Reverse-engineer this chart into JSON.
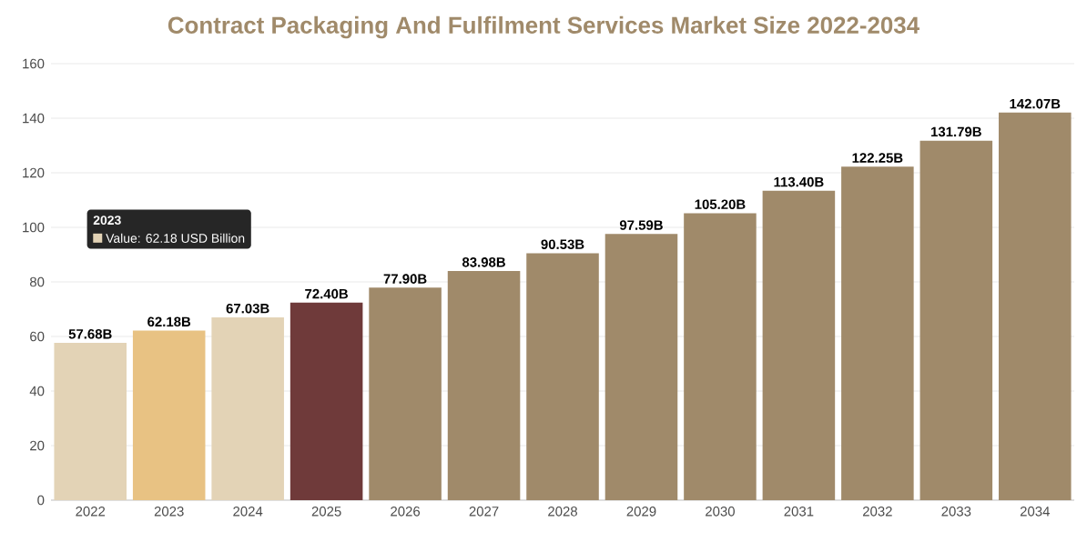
{
  "chart_data": {
    "type": "bar",
    "title": "Contract Packaging And Fulfilment Services Market Size 2022-2034",
    "categories": [
      "2022",
      "2023",
      "2024",
      "2025",
      "2026",
      "2027",
      "2028",
      "2029",
      "2030",
      "2031",
      "2032",
      "2033",
      "2034"
    ],
    "values": [
      57.68,
      62.18,
      67.03,
      72.4,
      77.9,
      83.98,
      90.53,
      97.59,
      105.2,
      113.4,
      122.25,
      131.79,
      142.07
    ],
    "value_labels": [
      "57.68B",
      "62.18B",
      "67.03B",
      "72.40B",
      "77.90B",
      "83.98B",
      "90.53B",
      "97.59B",
      "105.20B",
      "113.40B",
      "122.25B",
      "131.79B",
      "142.07B"
    ],
    "colors": [
      "#e3d3b6",
      "#e8c283",
      "#e3d3b6",
      "#6f3a3a",
      "#a08a6a",
      "#a08a6a",
      "#a08a6a",
      "#a08a6a",
      "#a08a6a",
      "#a08a6a",
      "#a08a6a",
      "#a08a6a",
      "#a08a6a"
    ],
    "ylim": [
      0,
      160
    ],
    "yticks": [
      0,
      20,
      40,
      60,
      80,
      100,
      120,
      140,
      160
    ],
    "grid": "y",
    "annotations": [
      "2023",
      "Value: 62.18 USD Billion"
    ]
  }
}
